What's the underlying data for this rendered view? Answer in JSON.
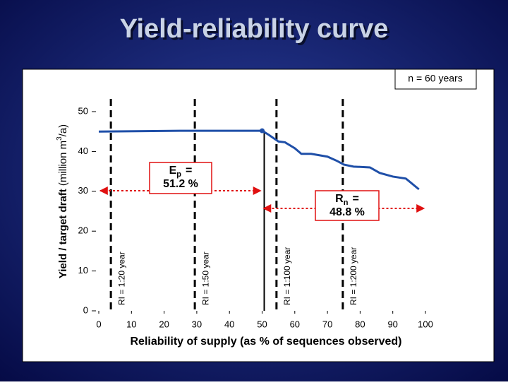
{
  "chart_data": {
    "type": "line",
    "title": "Yield-reliability curve",
    "note": "n = 60 years",
    "y_label": {
      "bold": "Yield / target draft",
      "rest": "(million m",
      "sup": "3",
      "end": "/a)"
    },
    "x_label": "Reliability of supply (as % of sequences observed)",
    "xlim": [
      0,
      100
    ],
    "xticks": [
      0,
      10,
      20,
      30,
      40,
      50,
      60,
      70,
      80,
      90,
      100
    ],
    "ylim": [
      0,
      50
    ],
    "yticks": [
      0,
      10,
      20,
      30,
      40,
      50
    ],
    "series": [
      {
        "name": "Yield",
        "color": "#1f4fa8",
        "x": [
          0,
          25,
          50,
          52,
          55,
          57,
          60,
          62,
          65,
          70,
          73,
          75,
          78,
          83,
          86,
          90,
          94,
          98
        ],
        "values": [
          45,
          45.2,
          45.2,
          44.2,
          42.5,
          42.3,
          40.8,
          39.4,
          39.4,
          38.7,
          37.6,
          36.7,
          36.2,
          36,
          34.6,
          33.7,
          33.2,
          30.5
        ]
      }
    ],
    "split_x": 50,
    "ri_lines": [
      {
        "label": "RI = 1:20 year",
        "x": 3.7
      },
      {
        "label": "RI = 1:50 year",
        "x": 29.4
      },
      {
        "label": "RI = 1:100 year",
        "x": 54.4
      },
      {
        "label": "RI = 1:200 year",
        "x": 74.7
      }
    ],
    "annotations": [
      {
        "symbol": "E",
        "sub": "p",
        "text": "=",
        "value": "51.2 %"
      },
      {
        "symbol": "R",
        "sub": "n",
        "text": "=",
        "value": "48.8 %"
      }
    ]
  }
}
